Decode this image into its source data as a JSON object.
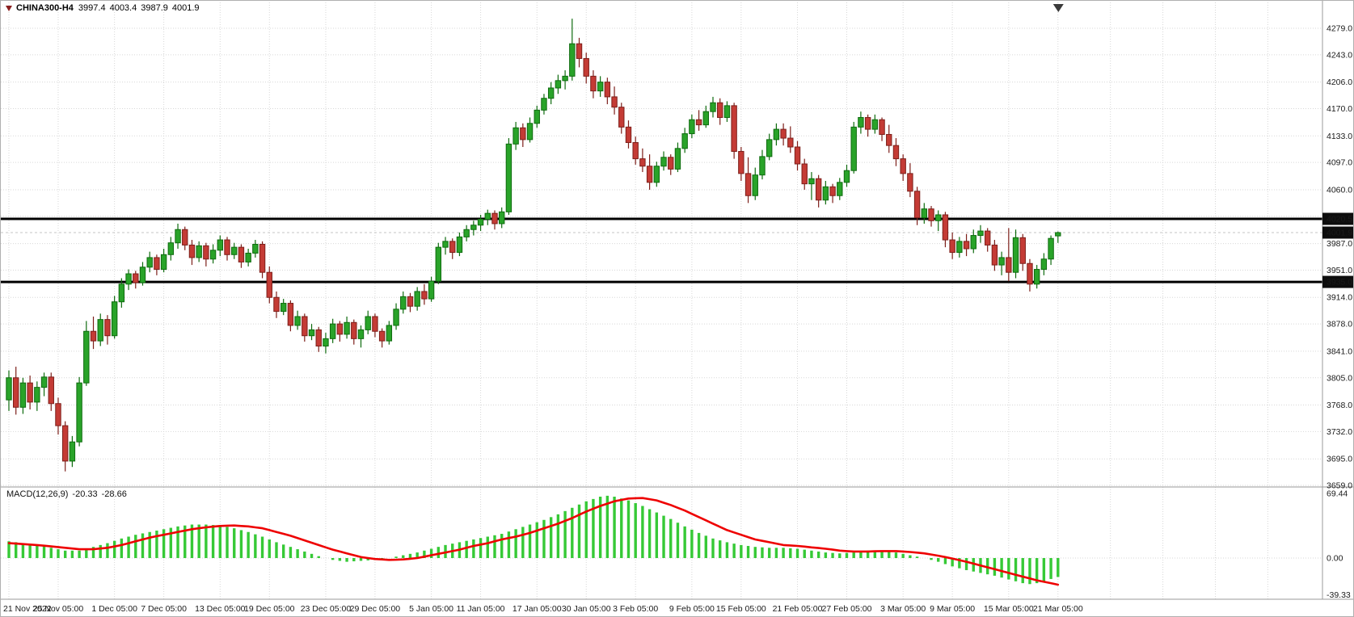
{
  "title": {
    "symbol": "CHINA300-H4",
    "open": "3997.4",
    "high": "4003.4",
    "low": "3987.9",
    "close": "4001.9"
  },
  "macd_label": {
    "name": "MACD(12,26,9)",
    "main": "-20.33",
    "signal": "-28.66"
  },
  "colors": {
    "up": "#29a329",
    "up_border": "#0e6b0e",
    "down": "#c43b35",
    "down_border": "#7d1f1a",
    "histogram": "#36c936",
    "signal": "#ee0000",
    "hline": "#000000",
    "grid": "#d7d7d7",
    "separator": "#999999",
    "tag_bg": "#0d0d0d",
    "tag_fg": "#ffffff",
    "axis_text": "#1a1a1a",
    "background": "#ffffff"
  },
  "chart_data": {
    "type": "candlestick",
    "price_axis": {
      "min": 3659,
      "max": 4279,
      "grid": [
        {
          "value": 4279,
          "text": "4279.0"
        },
        {
          "value": 4243,
          "text": "4243.0"
        },
        {
          "value": 4206,
          "text": "4206.0"
        },
        {
          "value": 4170,
          "text": "4170.0"
        },
        {
          "value": 4133,
          "text": "4133.0"
        },
        {
          "value": 4097,
          "text": "4097.0"
        },
        {
          "value": 4060,
          "text": "4060.0"
        },
        {
          "value": 4024,
          "text": ""
        },
        {
          "value": 3987,
          "text": "3987.0"
        },
        {
          "value": 3951,
          "text": "3951.0"
        },
        {
          "value": 3914,
          "text": "3914.0"
        },
        {
          "value": 3878,
          "text": "3878.0"
        },
        {
          "value": 3841,
          "text": "3841.0"
        },
        {
          "value": 3805,
          "text": "3805.0"
        },
        {
          "value": 3768,
          "text": "3768.0"
        },
        {
          "value": 3732,
          "text": "3732.0"
        },
        {
          "value": 3695,
          "text": "3695.0"
        },
        {
          "value": 3659,
          "text": "3659.0"
        }
      ]
    },
    "macd_axis": [
      {
        "text": "69.44",
        "value": 69.44
      },
      {
        "text": "0.00",
        "value": 0
      },
      {
        "text": "-39.33",
        "value": -39.33
      }
    ],
    "horizontal_lines": [
      4020.5,
      3935
    ],
    "price_tags": [
      {
        "text": "4020.5",
        "value": 4020.5
      },
      {
        "text": "4001.9",
        "value": 4001.9
      },
      {
        "text": "3935.0",
        "value": 3935
      }
    ],
    "time_axis": [
      {
        "text": "21 Nov 2022",
        "index": 0
      },
      {
        "text": "25 Nov 05:00",
        "index": 7
      },
      {
        "text": "1 Dec 05:00",
        "index": 15
      },
      {
        "text": "7 Dec 05:00",
        "index": 22
      },
      {
        "text": "13 Dec 05:00",
        "index": 30
      },
      {
        "text": "19 Dec 05:00",
        "index": 37
      },
      {
        "text": "23 Dec 05:00",
        "index": 45
      },
      {
        "text": "29 Dec 05:00",
        "index": 52
      },
      {
        "text": "5 Jan 05:00",
        "index": 60
      },
      {
        "text": "11 Jan 05:00",
        "index": 67
      },
      {
        "text": "17 Jan 05:00",
        "index": 75
      },
      {
        "text": "30 Jan 05:00",
        "index": 82
      },
      {
        "text": "3 Feb 05:00",
        "index": 89
      },
      {
        "text": "9 Feb 05:00",
        "index": 97
      },
      {
        "text": "15 Feb 05:00",
        "index": 104
      },
      {
        "text": "21 Feb 05:00",
        "index": 112
      },
      {
        "text": "27 Feb 05:00",
        "index": 119
      },
      {
        "text": "3 Mar 05:00",
        "index": 127
      },
      {
        "text": "9 Mar 05:00",
        "index": 134
      },
      {
        "text": "15 Mar 05:00",
        "index": 142
      },
      {
        "text": "21 Mar 05:00",
        "index": 149
      }
    ],
    "candles": [
      [
        3775,
        3815,
        3760,
        3805
      ],
      [
        3805,
        3820,
        3755,
        3765
      ],
      [
        3765,
        3805,
        3756,
        3798
      ],
      [
        3798,
        3808,
        3762,
        3772
      ],
      [
        3772,
        3800,
        3760,
        3792
      ],
      [
        3792,
        3812,
        3780,
        3806
      ],
      [
        3806,
        3812,
        3760,
        3770
      ],
      [
        3770,
        3778,
        3728,
        3740
      ],
      [
        3740,
        3746,
        3678,
        3692
      ],
      [
        3692,
        3726,
        3684,
        3718
      ],
      [
        3718,
        3806,
        3712,
        3798
      ],
      [
        3798,
        3882,
        3794,
        3868
      ],
      [
        3868,
        3888,
        3844,
        3855
      ],
      [
        3855,
        3892,
        3848,
        3884
      ],
      [
        3884,
        3890,
        3850,
        3862
      ],
      [
        3862,
        3916,
        3858,
        3908
      ],
      [
        3908,
        3940,
        3900,
        3932
      ],
      [
        3932,
        3952,
        3924,
        3946
      ],
      [
        3946,
        3950,
        3926,
        3934
      ],
      [
        3934,
        3962,
        3930,
        3955
      ],
      [
        3955,
        3976,
        3948,
        3968
      ],
      [
        3968,
        3972,
        3944,
        3952
      ],
      [
        3952,
        3980,
        3948,
        3972
      ],
      [
        3972,
        3996,
        3964,
        3988
      ],
      [
        3988,
        4014,
        3980,
        4006
      ],
      [
        4006,
        4010,
        3978,
        3985
      ],
      [
        3985,
        3992,
        3958,
        3968
      ],
      [
        3968,
        3990,
        3962,
        3984
      ],
      [
        3984,
        3988,
        3956,
        3966
      ],
      [
        3966,
        3986,
        3960,
        3978
      ],
      [
        3978,
        3998,
        3970,
        3992
      ],
      [
        3992,
        3996,
        3964,
        3972
      ],
      [
        3972,
        3988,
        3966,
        3982
      ],
      [
        3982,
        3986,
        3954,
        3962
      ],
      [
        3962,
        3980,
        3956,
        3974
      ],
      [
        3974,
        3992,
        3968,
        3986
      ],
      [
        3986,
        3990,
        3940,
        3948
      ],
      [
        3948,
        3956,
        3906,
        3914
      ],
      [
        3914,
        3922,
        3886,
        3895
      ],
      [
        3895,
        3912,
        3890,
        3906
      ],
      [
        3906,
        3910,
        3868,
        3876
      ],
      [
        3876,
        3896,
        3870,
        3888
      ],
      [
        3888,
        3892,
        3854,
        3862
      ],
      [
        3862,
        3878,
        3856,
        3870
      ],
      [
        3870,
        3874,
        3840,
        3848
      ],
      [
        3848,
        3866,
        3838,
        3858
      ],
      [
        3858,
        3885,
        3852,
        3878
      ],
      [
        3878,
        3882,
        3854,
        3864
      ],
      [
        3864,
        3888,
        3858,
        3880
      ],
      [
        3880,
        3884,
        3850,
        3858
      ],
      [
        3858,
        3876,
        3846,
        3870
      ],
      [
        3870,
        3896,
        3864,
        3888
      ],
      [
        3888,
        3892,
        3860,
        3868
      ],
      [
        3868,
        3872,
        3846,
        3855
      ],
      [
        3855,
        3882,
        3850,
        3876
      ],
      [
        3876,
        3906,
        3870,
        3898
      ],
      [
        3898,
        3922,
        3892,
        3915
      ],
      [
        3915,
        3920,
        3894,
        3902
      ],
      [
        3902,
        3928,
        3896,
        3922
      ],
      [
        3922,
        3932,
        3904,
        3912
      ],
      [
        3912,
        3942,
        3908,
        3936
      ],
      [
        3936,
        3988,
        3932,
        3982
      ],
      [
        3982,
        3996,
        3972,
        3990
      ],
      [
        3990,
        3994,
        3966,
        3975
      ],
      [
        3975,
        4002,
        3970,
        3996
      ],
      [
        3996,
        4012,
        3990,
        4006
      ],
      [
        4006,
        4018,
        3998,
        4012
      ],
      [
        4012,
        4026,
        4004,
        4020
      ],
      [
        4020,
        4033,
        4012,
        4028
      ],
      [
        4028,
        4032,
        4006,
        4014
      ],
      [
        4014,
        4036,
        4008,
        4030
      ],
      [
        4030,
        4130,
        4026,
        4122
      ],
      [
        4122,
        4152,
        4114,
        4144
      ],
      [
        4144,
        4150,
        4118,
        4128
      ],
      [
        4128,
        4158,
        4124,
        4150
      ],
      [
        4150,
        4174,
        4144,
        4168
      ],
      [
        4168,
        4190,
        4162,
        4184
      ],
      [
        4184,
        4206,
        4176,
        4198
      ],
      [
        4198,
        4216,
        4190,
        4208
      ],
      [
        4208,
        4222,
        4196,
        4214
      ],
      [
        4214,
        4292,
        4208,
        4258
      ],
      [
        4258,
        4266,
        4226,
        4238
      ],
      [
        4238,
        4246,
        4204,
        4214
      ],
      [
        4214,
        4222,
        4184,
        4194
      ],
      [
        4194,
        4214,
        4186,
        4206
      ],
      [
        4206,
        4212,
        4176,
        4186
      ],
      [
        4186,
        4200,
        4162,
        4172
      ],
      [
        4172,
        4178,
        4136,
        4145
      ],
      [
        4145,
        4154,
        4116,
        4124
      ],
      [
        4124,
        4132,
        4094,
        4102
      ],
      [
        4102,
        4116,
        4084,
        4092
      ],
      [
        4092,
        4108,
        4060,
        4070
      ],
      [
        4070,
        4098,
        4064,
        4092
      ],
      [
        4092,
        4112,
        4086,
        4104
      ],
      [
        4104,
        4108,
        4080,
        4088
      ],
      [
        4088,
        4124,
        4084,
        4116
      ],
      [
        4116,
        4144,
        4110,
        4136
      ],
      [
        4136,
        4162,
        4130,
        4155
      ],
      [
        4155,
        4168,
        4140,
        4148
      ],
      [
        4148,
        4174,
        4144,
        4166
      ],
      [
        4166,
        4186,
        4158,
        4178
      ],
      [
        4178,
        4184,
        4148,
        4158
      ],
      [
        4158,
        4180,
        4152,
        4174
      ],
      [
        4174,
        4178,
        4102,
        4112
      ],
      [
        4112,
        4118,
        4072,
        4082
      ],
      [
        4082,
        4104,
        4042,
        4052
      ],
      [
        4052,
        4090,
        4046,
        4080
      ],
      [
        4080,
        4114,
        4074,
        4105
      ],
      [
        4105,
        4136,
        4100,
        4128
      ],
      [
        4128,
        4150,
        4120,
        4142
      ],
      [
        4142,
        4150,
        4120,
        4130
      ],
      [
        4130,
        4146,
        4110,
        4118
      ],
      [
        4118,
        4126,
        4086,
        4095
      ],
      [
        4095,
        4102,
        4060,
        4068
      ],
      [
        4068,
        4084,
        4046,
        4075
      ],
      [
        4075,
        4080,
        4036,
        4046
      ],
      [
        4046,
        4072,
        4040,
        4064
      ],
      [
        4064,
        4068,
        4042,
        4052
      ],
      [
        4052,
        4076,
        4046,
        4070
      ],
      [
        4070,
        4094,
        4064,
        4086
      ],
      [
        4086,
        4152,
        4082,
        4145
      ],
      [
        4145,
        4166,
        4136,
        4158
      ],
      [
        4158,
        4162,
        4132,
        4142
      ],
      [
        4142,
        4162,
        4136,
        4155
      ],
      [
        4155,
        4158,
        4126,
        4135
      ],
      [
        4135,
        4148,
        4110,
        4120
      ],
      [
        4120,
        4130,
        4092,
        4102
      ],
      [
        4102,
        4108,
        4072,
        4082
      ],
      [
        4082,
        4096,
        4050,
        4058
      ],
      [
        4058,
        4064,
        4012,
        4022
      ],
      [
        4022,
        4042,
        4014,
        4034
      ],
      [
        4034,
        4038,
        4010,
        4018
      ],
      [
        4018,
        4032,
        4004,
        4026
      ],
      [
        4026,
        4030,
        3982,
        3992
      ],
      [
        3992,
        4002,
        3966,
        3975
      ],
      [
        3975,
        3996,
        3968,
        3990
      ],
      [
        3990,
        4000,
        3970,
        3980
      ],
      [
        3980,
        4006,
        3974,
        3998
      ],
      [
        3998,
        4012,
        3988,
        4004
      ],
      [
        4004,
        4008,
        3976,
        3985
      ],
      [
        3985,
        3992,
        3950,
        3958
      ],
      [
        3958,
        3976,
        3944,
        3968
      ],
      [
        3968,
        4008,
        3936,
        3948
      ],
      [
        3948,
        4006,
        3940,
        3995
      ],
      [
        3995,
        4000,
        3950,
        3960
      ],
      [
        3960,
        3966,
        3922,
        3932
      ],
      [
        3932,
        3958,
        3926,
        3952
      ],
      [
        3952,
        3974,
        3944,
        3966
      ],
      [
        3966,
        3998,
        3958,
        3994
      ],
      [
        3997.4,
        4003.4,
        3987.9,
        4001.9
      ]
    ],
    "macd": {
      "histogram": [
        18,
        17,
        16,
        15,
        14,
        12.5,
        11,
        9.5,
        8,
        8,
        8,
        10,
        12,
        14,
        16,
        18.5,
        21,
        23,
        25,
        26.5,
        28,
        29.5,
        31,
        32.5,
        34,
        35,
        36,
        36,
        36,
        35.5,
        35,
        33.5,
        32,
        30,
        28,
        25.5,
        23,
        20,
        17,
        14.5,
        12,
        9.5,
        7,
        4.5,
        2,
        0,
        -2,
        -3,
        -4,
        -3.5,
        -3,
        -2.5,
        -2,
        -1,
        0,
        1.5,
        3,
        4.5,
        6,
        8,
        10,
        12,
        14,
        15.5,
        17,
        18.5,
        20,
        21.5,
        23,
        24.5,
        26,
        28.5,
        31,
        33.5,
        36,
        38.5,
        41,
        44,
        47,
        50.5,
        54,
        57.5,
        61,
        63.5,
        66,
        67,
        66,
        64,
        62,
        59,
        56,
        52.5,
        49,
        45.5,
        42,
        38,
        34,
        30.5,
        27,
        24,
        21,
        19,
        17,
        15.5,
        14,
        13,
        12,
        11.5,
        11,
        11,
        11,
        10.5,
        10,
        9,
        8,
        7,
        6,
        5.5,
        5,
        5.5,
        6,
        7,
        8,
        8,
        8,
        7,
        6,
        4.5,
        3,
        1.5,
        0,
        -2,
        -4,
        -6.5,
        -9,
        -11,
        -13,
        -14.5,
        -16,
        -17.5,
        -19,
        -21,
        -23,
        -25,
        -27,
        -28,
        -27,
        -25,
        -22.5,
        -20.33
      ],
      "signal": [
        16,
        15.5,
        15,
        14.5,
        14,
        13.3,
        12.5,
        11.8,
        11,
        10.2,
        9.5,
        9.5,
        9.5,
        10.2,
        11,
        12.5,
        14,
        16,
        18,
        20,
        22,
        23.5,
        25,
        26.5,
        28,
        29.5,
        31,
        32,
        33,
        33.8,
        34.5,
        34.8,
        35,
        34.5,
        34,
        33,
        32,
        30,
        28,
        26,
        24,
        21.5,
        19,
        16.5,
        14,
        11.5,
        9,
        7,
        5,
        3,
        1,
        0,
        -1,
        -1.5,
        -2,
        -1.8,
        -1.5,
        -0.8,
        0,
        1.5,
        3,
        4.5,
        6,
        7.5,
        9,
        11,
        13,
        14.5,
        16,
        18,
        20,
        21.5,
        23,
        25,
        27,
        29.5,
        32,
        34.5,
        37,
        40,
        43,
        46.5,
        50,
        53,
        56,
        58.5,
        61,
        62.5,
        64,
        64.3,
        64.5,
        63.3,
        62,
        59.5,
        57,
        54,
        51,
        47.5,
        44,
        40.5,
        37,
        33.5,
        30,
        27.5,
        25,
        22.5,
        20,
        18.5,
        17,
        15.5,
        14,
        13.5,
        13,
        12.3,
        11.5,
        10.8,
        10,
        9,
        8,
        7.5,
        7,
        7,
        7,
        7.3,
        7.5,
        7.5,
        7.5,
        7,
        6.5,
        5.8,
        5,
        3.8,
        2.5,
        1,
        -0.5,
        -2.3,
        -4,
        -6,
        -8,
        -10,
        -12,
        -14,
        -16,
        -18,
        -20,
        -22,
        -24,
        -25.5,
        -27,
        -28.66
      ]
    }
  }
}
